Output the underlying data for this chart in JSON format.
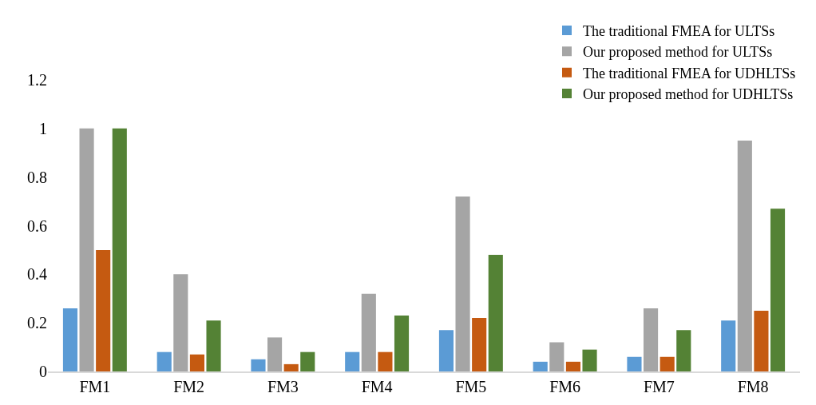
{
  "chart_data": {
    "type": "bar",
    "categories": [
      "FM1",
      "FM2",
      "FM3",
      "FM4",
      "FM5",
      "FM6",
      "FM7",
      "FM8"
    ],
    "series": [
      {
        "name": "The traditional FMEA for ULTSs",
        "color": "#5b9bd5",
        "values": [
          0.26,
          0.08,
          0.05,
          0.08,
          0.17,
          0.04,
          0.06,
          0.21
        ]
      },
      {
        "name": "Our proposed method for ULTSs",
        "color": "#a5a5a5",
        "values": [
          1.0,
          0.4,
          0.14,
          0.32,
          0.72,
          0.12,
          0.26,
          0.95
        ]
      },
      {
        "name": "The traditional FMEA for UDHLTSs",
        "color": "#c55a11",
        "values": [
          0.5,
          0.07,
          0.03,
          0.08,
          0.22,
          0.04,
          0.06,
          0.25
        ]
      },
      {
        "name": "Our proposed method for UDHLTSs",
        "color": "#548235",
        "values": [
          1.0,
          0.21,
          0.08,
          0.23,
          0.48,
          0.09,
          0.17,
          0.67
        ]
      }
    ],
    "ylim": [
      0,
      1.2
    ],
    "yticks": [
      0,
      0.2,
      0.4,
      0.6,
      0.8,
      1,
      1.2
    ],
    "legend": "top right"
  }
}
